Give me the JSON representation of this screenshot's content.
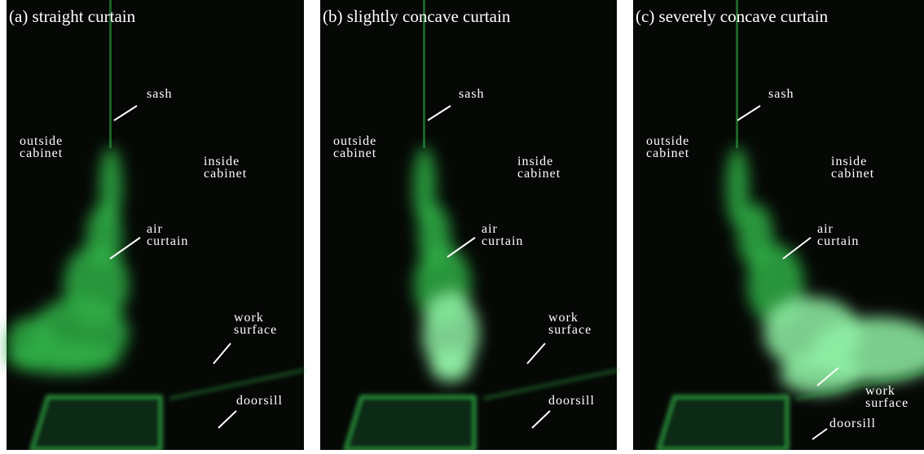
{
  "panels": [
    {
      "title": "(a) straight curtain",
      "labels": {
        "sash": [
          "sash"
        ],
        "outside": [
          "outside",
          "cabinet"
        ],
        "inside": [
          "inside",
          "cabinet"
        ],
        "air": [
          "air",
          "curtain"
        ],
        "work": [
          "work",
          "surface"
        ],
        "doorsill": [
          "doorsill"
        ]
      }
    },
    {
      "title": "(b) slightly concave curtain",
      "labels": {
        "sash": [
          "sash"
        ],
        "outside": [
          "outside",
          "cabinet"
        ],
        "inside": [
          "inside",
          "cabinet"
        ],
        "air": [
          "air",
          "curtain"
        ],
        "work": [
          "work",
          "surface"
        ],
        "doorsill": [
          "doorsill"
        ]
      }
    },
    {
      "title": "(c) severely concave curtain",
      "labels": {
        "sash": [
          "sash"
        ],
        "outside": [
          "outside",
          "cabinet"
        ],
        "inside": [
          "inside",
          "cabinet"
        ],
        "air": [
          "air",
          "curtain"
        ],
        "work": [
          "work",
          "surface"
        ],
        "doorsill": [
          "doorsill"
        ]
      }
    }
  ]
}
